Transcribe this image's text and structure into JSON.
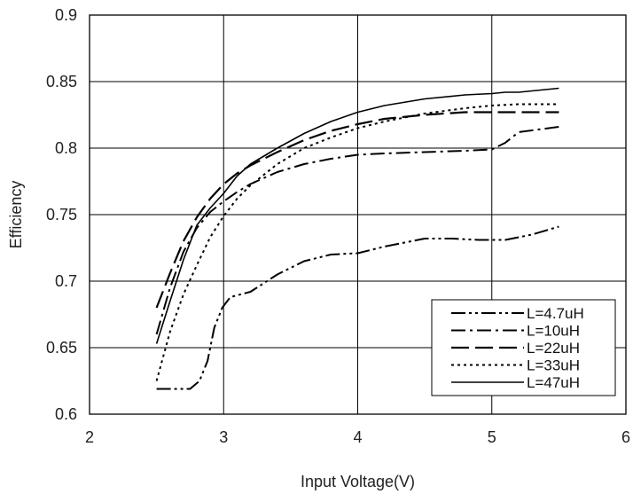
{
  "chart_data": {
    "type": "line",
    "title": "",
    "xlabel": "Input Voltage(V)",
    "ylabel": "Efficiency",
    "xlim": [
      2,
      6
    ],
    "ylim": [
      0.6,
      0.9
    ],
    "xticks": [
      "2",
      "3",
      "4",
      "5",
      "6"
    ],
    "yticks": [
      "0.6",
      "0.65",
      "0.7",
      "0.75",
      "0.8",
      "0.85",
      "0.9"
    ],
    "grid": true,
    "legend_position": "bottom-right",
    "series": [
      {
        "name": "L=4.7uH",
        "dash": "dash-dot-dot",
        "x": [
          2.5,
          2.75,
          2.82,
          2.88,
          2.93,
          2.99,
          3.05,
          3.2,
          3.4,
          3.6,
          3.8,
          4.0,
          4.2,
          4.5,
          4.7,
          4.9,
          5.1,
          5.3,
          5.5
        ],
        "y": [
          0.619,
          0.619,
          0.625,
          0.64,
          0.665,
          0.68,
          0.688,
          0.692,
          0.705,
          0.715,
          0.72,
          0.721,
          0.726,
          0.732,
          0.732,
          0.731,
          0.731,
          0.735,
          0.741
        ]
      },
      {
        "name": "L=10uH",
        "dash": "dash-dot",
        "x": [
          2.5,
          2.6,
          2.7,
          2.8,
          2.9,
          3.0,
          3.1,
          3.2,
          3.4,
          3.6,
          3.8,
          4.0,
          4.2,
          4.5,
          4.8,
          5.0,
          5.1,
          5.2,
          5.5
        ],
        "y": [
          0.66,
          0.695,
          0.722,
          0.74,
          0.752,
          0.76,
          0.767,
          0.773,
          0.782,
          0.788,
          0.792,
          0.795,
          0.796,
          0.797,
          0.798,
          0.799,
          0.804,
          0.812,
          0.816
        ]
      },
      {
        "name": "L=22uH",
        "dash": "long-dash",
        "x": [
          2.5,
          2.6,
          2.7,
          2.8,
          2.9,
          3.0,
          3.1,
          3.2,
          3.4,
          3.6,
          3.8,
          4.0,
          4.2,
          4.5,
          4.8,
          5.0,
          5.2,
          5.5
        ],
        "y": [
          0.68,
          0.706,
          0.73,
          0.748,
          0.762,
          0.773,
          0.781,
          0.787,
          0.797,
          0.806,
          0.813,
          0.818,
          0.822,
          0.825,
          0.827,
          0.827,
          0.827,
          0.827
        ]
      },
      {
        "name": "L=33uH",
        "dash": "dotted",
        "x": [
          2.5,
          2.6,
          2.7,
          2.8,
          2.9,
          3.0,
          3.1,
          3.2,
          3.4,
          3.6,
          3.8,
          4.0,
          4.2,
          4.5,
          4.8,
          5.0,
          5.2,
          5.5
        ],
        "y": [
          0.625,
          0.662,
          0.69,
          0.712,
          0.733,
          0.749,
          0.762,
          0.772,
          0.788,
          0.8,
          0.808,
          0.815,
          0.82,
          0.826,
          0.83,
          0.832,
          0.833,
          0.833
        ]
      },
      {
        "name": "L=47uH",
        "dash": "solid",
        "x": [
          2.5,
          2.6,
          2.7,
          2.8,
          2.9,
          3.0,
          3.1,
          3.2,
          3.4,
          3.6,
          3.8,
          4.0,
          4.2,
          4.5,
          4.8,
          5.0,
          5.1,
          5.2,
          5.5
        ],
        "y": [
          0.653,
          0.685,
          0.716,
          0.742,
          0.755,
          0.766,
          0.779,
          0.788,
          0.8,
          0.811,
          0.82,
          0.827,
          0.832,
          0.837,
          0.84,
          0.841,
          0.842,
          0.842,
          0.845
        ]
      }
    ]
  }
}
